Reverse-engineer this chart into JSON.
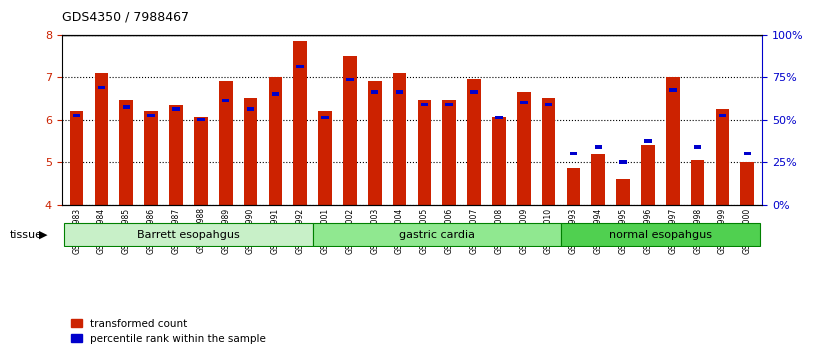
{
  "title": "GDS4350 / 7988467",
  "samples": [
    "GSM851983",
    "GSM851984",
    "GSM851985",
    "GSM851986",
    "GSM851987",
    "GSM851988",
    "GSM851989",
    "GSM851990",
    "GSM851991",
    "GSM851992",
    "GSM852001",
    "GSM852002",
    "GSM852003",
    "GSM852004",
    "GSM852005",
    "GSM852006",
    "GSM852007",
    "GSM852008",
    "GSM852009",
    "GSM852010",
    "GSM851993",
    "GSM851994",
    "GSM851995",
    "GSM851996",
    "GSM851997",
    "GSM851998",
    "GSM851999",
    "GSM852000"
  ],
  "red_values": [
    6.2,
    7.1,
    6.45,
    6.2,
    6.35,
    6.05,
    6.9,
    6.5,
    7.0,
    7.85,
    6.2,
    7.5,
    6.9,
    7.1,
    6.45,
    6.45,
    6.95,
    6.05,
    6.65,
    6.5,
    4.85,
    5.2,
    4.6,
    5.4,
    7.0,
    5.05,
    6.25,
    5.0
  ],
  "blue_values": [
    6.1,
    6.75,
    6.3,
    6.1,
    6.25,
    6.0,
    6.45,
    6.25,
    6.6,
    7.25,
    6.05,
    6.95,
    6.65,
    6.65,
    6.35,
    6.35,
    6.65,
    6.05,
    6.4,
    6.35,
    5.2,
    5.35,
    5.0,
    5.5,
    6.7,
    5.35,
    6.1,
    5.2
  ],
  "groups": [
    {
      "label": "Barrett esopahgus",
      "start": 0,
      "end": 10,
      "color": "#c8f0c8"
    },
    {
      "label": "gastric cardia",
      "start": 10,
      "end": 20,
      "color": "#90e890"
    },
    {
      "label": "normal esopahgus",
      "start": 20,
      "end": 28,
      "color": "#50d050"
    }
  ],
  "ylim": [
    4.0,
    8.0
  ],
  "yticks": [
    4,
    5,
    6,
    7,
    8
  ],
  "y2ticks": [
    0,
    25,
    50,
    75,
    100
  ],
  "y2labels": [
    "0%",
    "25%",
    "50%",
    "75%",
    "100%"
  ],
  "red_color": "#cc2200",
  "blue_color": "#0000cc",
  "legend_red": "transformed count",
  "legend_blue": "percentile rank within the sample",
  "tissue_label": "tissue",
  "ylabel_color_red": "#cc2200",
  "ylabel_color_blue": "#0000cc"
}
